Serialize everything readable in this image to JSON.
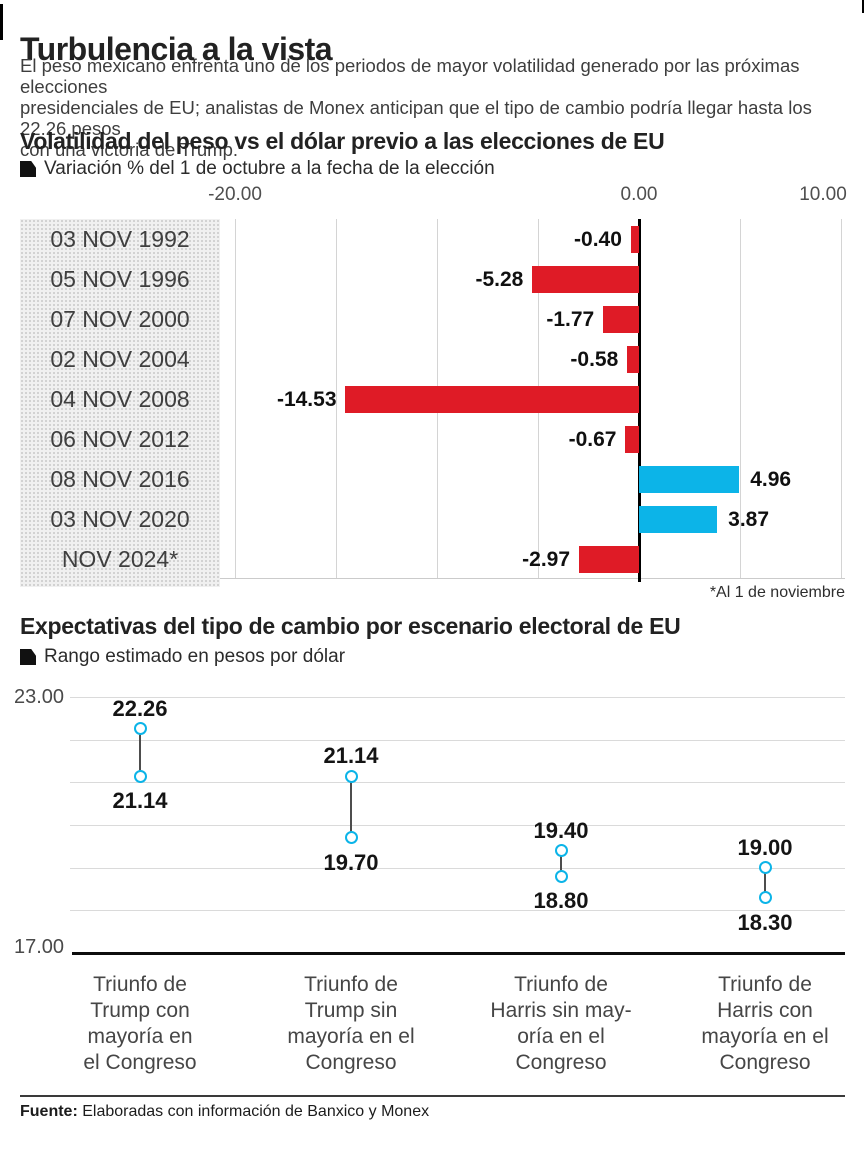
{
  "header": {
    "title": "Turbulencia a la vista",
    "intro_lines": [
      "El peso mexicano enfrenta uno de los periodos de mayor volatilidad generado por las próximas elecciones",
      "presidenciales de EU; analistas de Monex anticipan que el tipo de cambio podría llegar hasta los 22.26 pesos",
      "con una victoria de Trump."
    ]
  },
  "chart_data": [
    {
      "type": "bar",
      "orientation": "horizontal",
      "title": "Volatilidad del peso vs el dólar previo a las elecciones de EU",
      "legend": "Variación % del 1 de octubre a la fecha de la elección",
      "xlim": [
        -20,
        10
      ],
      "grid_step": 5,
      "axis_ticks": [
        {
          "value": -20,
          "label": "-20.00"
        },
        {
          "value": 0,
          "label": "0.00"
        },
        {
          "value": 10,
          "label": "10.00"
        }
      ],
      "categories": [
        "03 NOV 1992",
        "05 NOV 1996",
        "07 NOV 2000",
        "02 NOV 2004",
        "04 NOV 2008",
        "06 NOV 2012",
        "08 NOV 2016",
        "03 NOV 2020",
        "NOV 2024*"
      ],
      "values": [
        -0.4,
        -5.28,
        -1.77,
        -0.58,
        -14.53,
        -0.67,
        4.96,
        3.87,
        -2.97
      ],
      "value_labels": [
        "-0.40",
        "-5.28",
        "-1.77",
        "-0.58",
        "-14.53",
        "-0.67",
        "4.96",
        "3.87",
        "-2.97"
      ],
      "colors": {
        "negative": "#df1b26",
        "positive": "#0cb4e8"
      },
      "note": "*Al 1 de noviembre"
    },
    {
      "type": "range",
      "title": "Expectativas del tipo de cambio por escenario electoral de EU",
      "legend": "Rango estimado en pesos por dólar",
      "ylim": [
        17,
        23
      ],
      "grid_step": 1,
      "axis_ticks": [
        {
          "value": 23,
          "label": "23.00"
        },
        {
          "value": 17,
          "label": "17.00"
        }
      ],
      "marker_color": "#0cb4e8",
      "points": [
        {
          "category_lines": [
            "Triunfo de",
            "Trump con",
            "mayoría en",
            "el Congreso"
          ],
          "high": 22.26,
          "low": 21.14,
          "high_label": "22.26",
          "low_label": "21.14"
        },
        {
          "category_lines": [
            "Triunfo de",
            "Trump sin",
            "mayoría en el",
            "Congreso"
          ],
          "high": 21.14,
          "low": 19.7,
          "high_label": "21.14",
          "low_label": "19.70"
        },
        {
          "category_lines": [
            "Triunfo de",
            "Harris sin may-",
            "oría en el",
            "Congreso"
          ],
          "high": 19.4,
          "low": 18.8,
          "high_label": "19.40",
          "low_label": "18.80"
        },
        {
          "category_lines": [
            "Triunfo de",
            "Harris con",
            "mayoría en el",
            "Congreso"
          ],
          "high": 19.0,
          "low": 18.3,
          "high_label": "19.00",
          "low_label": "18.30"
        }
      ]
    }
  ],
  "footer": {
    "source_label": "Fuente:",
    "source_text": " Elaboradas con información de Banxico y Monex"
  }
}
